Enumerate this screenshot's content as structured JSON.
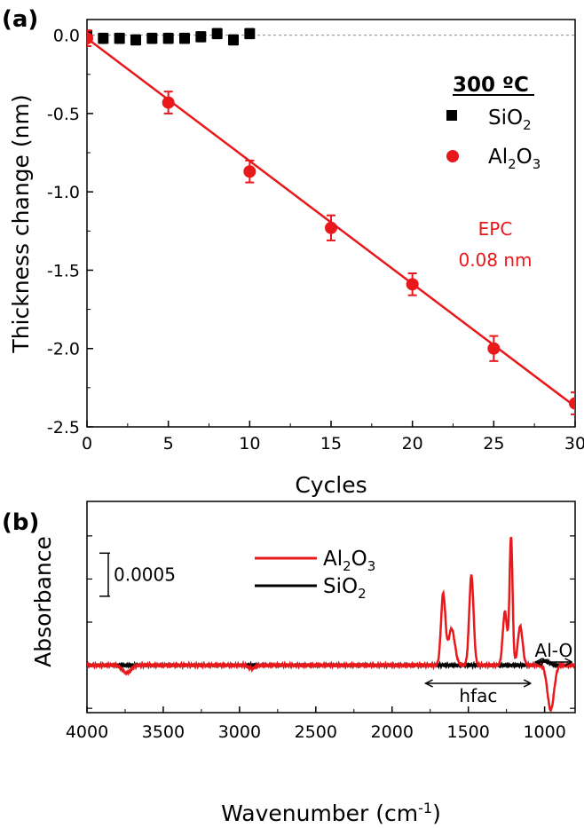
{
  "chart_data": [
    {
      "panel_label": "(a)",
      "type": "scatter",
      "xlabel": "Cycles",
      "ylabel": "Thickness change (nm)",
      "xlim": [
        0,
        30
      ],
      "ylim": [
        -2.5,
        0.1
      ],
      "xticks": [
        "0",
        "5",
        "10",
        "15",
        "20",
        "25",
        "30"
      ],
      "yticks": [
        "0.0",
        "-0.5",
        "-1.0",
        "-1.5",
        "-2.0",
        "-2.5"
      ],
      "legend_title": "300 ºC",
      "legend_position": "top-right",
      "series": [
        {
          "name": "SiO2",
          "marker": "square",
          "color": "#000000",
          "x": [
            0,
            1,
            2,
            3,
            4,
            5,
            6,
            7,
            8,
            9,
            10
          ],
          "y": [
            0.0,
            -0.02,
            -0.02,
            -0.03,
            -0.02,
            -0.02,
            -0.02,
            -0.01,
            0.01,
            -0.03,
            0.01
          ],
          "err": [
            0.03,
            0.03,
            0.03,
            0.03,
            0.03,
            0.03,
            0.03,
            0.03,
            0.03,
            0.03,
            0.03
          ]
        },
        {
          "name": "Al2O3",
          "marker": "circle",
          "color": "#e8181b",
          "x": [
            0,
            5,
            10,
            15,
            20,
            25,
            30
          ],
          "y": [
            -0.02,
            -0.43,
            -0.87,
            -1.23,
            -1.59,
            -2.0,
            -2.35
          ],
          "err": [
            0.05,
            0.07,
            0.07,
            0.08,
            0.07,
            0.08,
            0.07
          ]
        }
      ],
      "fit_line": {
        "color": "#e8181b",
        "x": [
          0,
          30
        ],
        "y": [
          -0.02,
          -2.37
        ]
      },
      "zero_line": true,
      "annotation": {
        "lines": [
          "EPC",
          "0.08 nm"
        ],
        "color": "#e8181b"
      }
    },
    {
      "panel_label": "(b)",
      "type": "line",
      "xlabel": "Wavenumber (cm⁻¹)",
      "ylabel": "Absorbance",
      "xlim": [
        4000,
        800
      ],
      "x_reversed": true,
      "ylim": [
        -0.00055,
        0.0019
      ],
      "xticks": [
        "4000",
        "3500",
        "3000",
        "2500",
        "2000",
        "1500",
        "1000"
      ],
      "yticks_shown": false,
      "legend_position": "top-center",
      "scale_bar": {
        "value": 0.0005,
        "label": "0.0005"
      },
      "series": [
        {
          "name": "Al2O3",
          "color": "#e8181b",
          "peaks": [
            {
              "center": 3740,
              "height": -9e-05,
              "width": 40
            },
            {
              "center": 2920,
              "height": -4e-05,
              "width": 30
            },
            {
              "center": 1665,
              "height": 0.00082,
              "width": 20
            },
            {
              "center": 1610,
              "height": 0.00042,
              "width": 30
            },
            {
              "center": 1480,
              "height": 0.00104,
              "width": 20
            },
            {
              "center": 1260,
              "height": 0.00062,
              "width": 20
            },
            {
              "center": 1220,
              "height": 0.00148,
              "width": 14
            },
            {
              "center": 1160,
              "height": 0.00045,
              "width": 22
            },
            {
              "center": 960,
              "height": -0.00052,
              "width": 30
            }
          ]
        },
        {
          "name": "SiO2",
          "color": "#000000",
          "peaks": [
            {
              "center": 1000,
              "height": 5e-05,
              "width": 40
            }
          ]
        }
      ],
      "annotations": [
        {
          "text": "hfac",
          "from": 1780,
          "to": 1090
        },
        {
          "text": "Al-O",
          "from": 1060,
          "to": 820
        }
      ]
    }
  ]
}
